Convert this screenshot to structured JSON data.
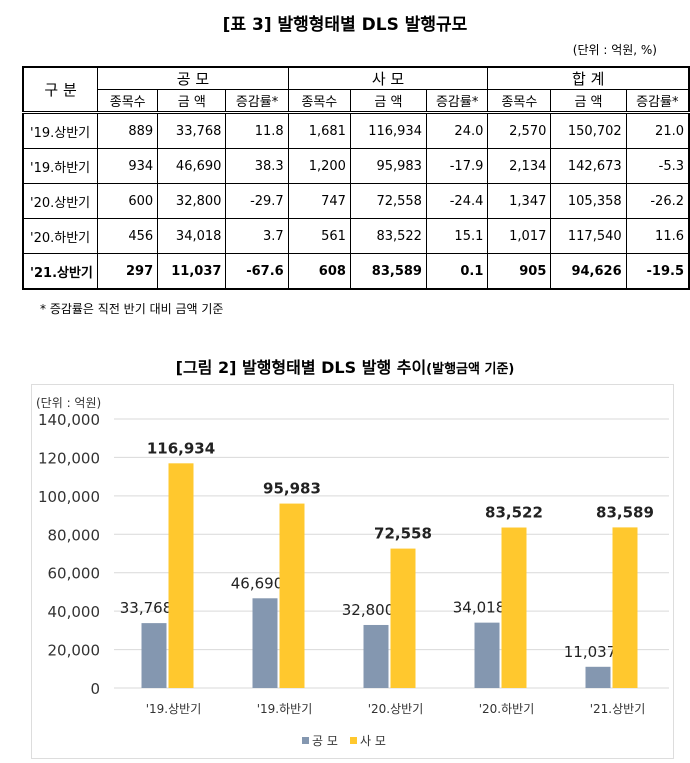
{
  "table": {
    "title": "[표 3] 발행형태별 DLS 발행규모",
    "unit": "(단위 : 억원, %)",
    "row_header": "구 분",
    "groups": [
      "공 모",
      "사 모",
      "합 계"
    ],
    "subheaders": [
      "종목수",
      "금 액",
      "증감률*"
    ],
    "rows": [
      {
        "label": "'19.상반기",
        "values": [
          "889",
          "33,768",
          "11.8",
          "1,681",
          "116,934",
          "24.0",
          "2,570",
          "150,702",
          "21.0"
        ]
      },
      {
        "label": "'19.하반기",
        "values": [
          "934",
          "46,690",
          "38.3",
          "1,200",
          "95,983",
          "-17.9",
          "2,134",
          "142,673",
          "-5.3"
        ]
      },
      {
        "label": "'20.상반기",
        "values": [
          "600",
          "32,800",
          "-29.7",
          "747",
          "72,558",
          "-24.4",
          "1,347",
          "105,358",
          "-26.2"
        ]
      },
      {
        "label": "'20.하반기",
        "values": [
          "456",
          "34,018",
          "3.7",
          "561",
          "83,522",
          "15.1",
          "1,017",
          "117,540",
          "11.6"
        ]
      },
      {
        "label": "'21.상반기",
        "values": [
          "297",
          "11,037",
          "-67.6",
          "608",
          "83,589",
          "0.1",
          "905",
          "94,626",
          "-19.5"
        ]
      }
    ],
    "note": "* 증감률은 직전 반기 대비 금액 기준"
  },
  "figure": {
    "title": "[그림 2] 발행형태별 DLS 발행 추이",
    "subtitle": "(발행금액 기준)"
  },
  "chart_data": {
    "type": "bar",
    "unit_label": "(단위 : 억원)",
    "categories": [
      "'19.상반기",
      "'19.하반기",
      "'20.상반기",
      "'20.하반기",
      "'21.상반기"
    ],
    "series": [
      {
        "name": "공 모",
        "color": "#8497B0",
        "values": [
          33768,
          46690,
          32800,
          34018,
          11037
        ]
      },
      {
        "name": "사 모",
        "color": "#FFC82E",
        "values": [
          116934,
          95983,
          72558,
          83522,
          83589
        ]
      }
    ],
    "ylim": [
      0,
      140000
    ],
    "yticks": [
      "0",
      "20,000",
      "40,000",
      "60,000",
      "80,000",
      "100,000",
      "120,000",
      "140,000"
    ],
    "grid": true,
    "legend": "bottom-right"
  }
}
